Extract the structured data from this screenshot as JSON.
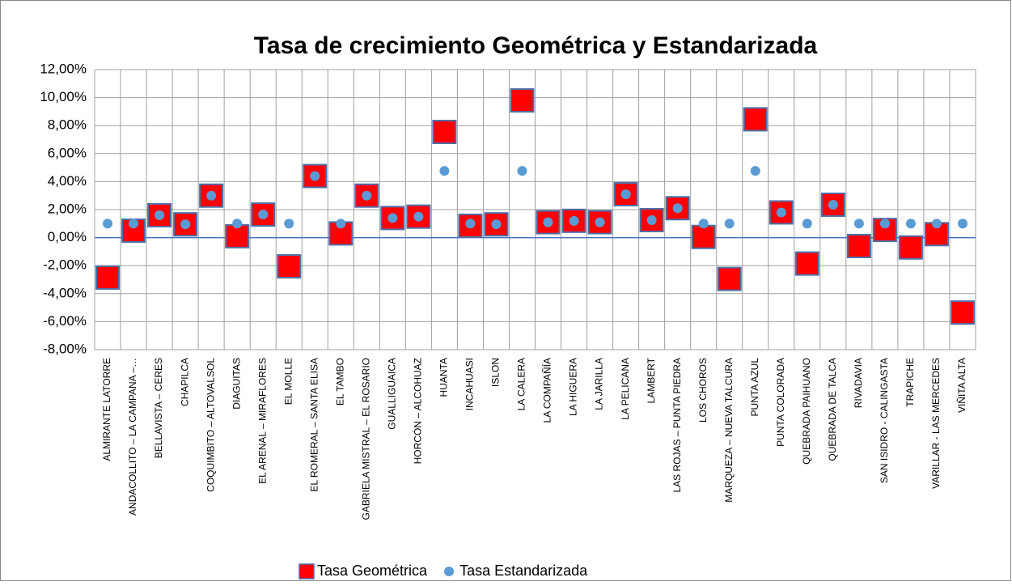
{
  "chart_data": {
    "type": "scatter",
    "title": "Tasa de crecimiento Geométrica y Estandarizada",
    "categories": [
      "ALMIRANTE LATORRE",
      "ANDACOLLITO – LA CAMPANA –…",
      "BELLAVISTA – CERES",
      "CHAPILCA",
      "COQUIMBITO – ALTOVALSOL",
      "DIAGUITAS",
      "EL ARENAL – MIRAFLORES",
      "EL MOLLE",
      "EL ROMERAL – SANTA ELISA",
      "EL TAMBO",
      "GABRIELA MISTRAL – EL ROSARIO",
      "GUALLIGUAICA",
      "HORCÓN – ALCOHUAZ",
      "HUANTA",
      "INCAHUASI",
      "ISLON",
      "LA CALERA",
      "LA COMPAÑÍA",
      "LA HIGUERA",
      "LA JARILLA",
      "LA PELICANA",
      "LAMBERT",
      "LAS ROJAS – PUNTA PIEDRA",
      "LOS CHOROS",
      "MARQUEZA – NUEVA TALCURA",
      "PUNTA AZUL",
      "PUNTA COLORADA",
      "QUEBRADA PAIHUANO",
      "QUEBRADA DE TALCA",
      "RIVADAVIA",
      "SAN ISIDRO - CALINGASTA",
      "TRAPICHE",
      "VARILLAR - LAS MERCEDES",
      "VIÑITA ALTA"
    ],
    "series": [
      {
        "name": "Tasa Geométrica",
        "color": "#ff0000",
        "marker": "square",
        "values": [
          -2.85,
          0.5,
          1.6,
          0.95,
          3.0,
          0.1,
          1.65,
          -2.05,
          4.4,
          0.3,
          3.0,
          1.4,
          1.5,
          7.55,
          0.85,
          0.95,
          9.8,
          1.1,
          1.2,
          1.1,
          3.1,
          1.25,
          2.1,
          0.05,
          -2.95,
          8.45,
          1.8,
          -1.85,
          2.35,
          -0.6,
          0.55,
          -0.7,
          0.25,
          -5.35
        ]
      },
      {
        "name": "Tasa Estandarizada",
        "color": "#5b9bd5",
        "marker": "circle",
        "values": [
          1.0,
          1.0,
          1.6,
          0.95,
          3.0,
          1.0,
          1.65,
          1.0,
          4.4,
          1.0,
          3.0,
          1.4,
          1.5,
          4.77,
          1.0,
          0.95,
          4.77,
          1.1,
          1.2,
          1.1,
          3.1,
          1.25,
          2.1,
          1.0,
          1.0,
          4.77,
          1.8,
          1.0,
          2.35,
          1.0,
          1.0,
          1.0,
          1.0,
          1.0
        ]
      }
    ],
    "ylim": [
      -8,
      12
    ],
    "yticks": [
      {
        "value": -8,
        "label": "-8,00%"
      },
      {
        "value": -6,
        "label": "-6,00%"
      },
      {
        "value": -4,
        "label": "-4,00%"
      },
      {
        "value": -2,
        "label": "-2,00%"
      },
      {
        "value": 0,
        "label": "0,00%"
      },
      {
        "value": 2,
        "label": "2,00%"
      },
      {
        "value": 4,
        "label": "4,00%"
      },
      {
        "value": 6,
        "label": "6,00%"
      },
      {
        "value": 8,
        "label": "8,00%"
      },
      {
        "value": 10,
        "label": "10,00%"
      },
      {
        "value": 12,
        "label": "12,00%"
      }
    ],
    "grid": true,
    "legend": "bottom"
  }
}
